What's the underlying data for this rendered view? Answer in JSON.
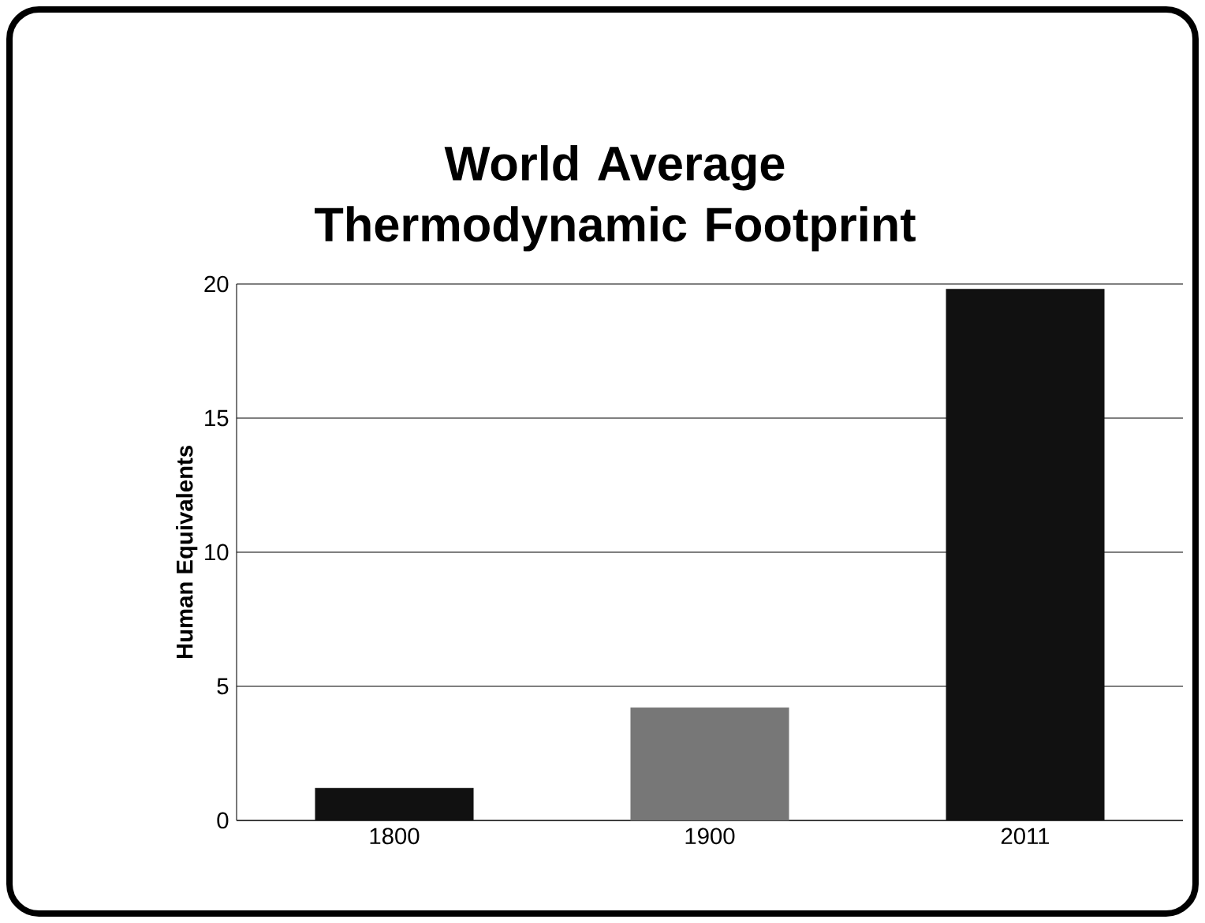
{
  "chart_data": {
    "type": "bar",
    "title": "World Average Thermodynamic Footprint",
    "ylabel": "Human Equivalents",
    "categories": [
      "1800",
      "1900",
      "2011"
    ],
    "values": [
      1.2,
      4.2,
      19.8
    ],
    "colors": [
      "#111111",
      "#777777",
      "#111111"
    ],
    "ylim": [
      0,
      20
    ],
    "yticks": [
      0,
      5,
      10,
      15,
      20
    ],
    "grid": "y"
  }
}
